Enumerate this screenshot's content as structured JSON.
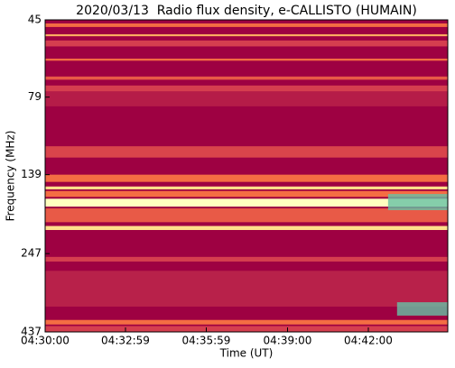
{
  "chart_data": {
    "type": "spectrogram",
    "title": "2020/03/13  Radio flux density, e-CALLISTO (HUMAIN)",
    "xlabel": "Time (UT)",
    "ylabel": "Frequency (MHz)",
    "xlim": [
      16200,
      17097
    ],
    "xticks": [
      {
        "value": 16200,
        "label": "04:30:00"
      },
      {
        "value": 16379,
        "label": "04:32:59"
      },
      {
        "value": 16559,
        "label": "04:35:59"
      },
      {
        "value": 16740,
        "label": "04:39:00"
      },
      {
        "value": 16920,
        "label": "04:42:00"
      }
    ],
    "ylim": [
      437,
      45
    ],
    "ylog": true,
    "yticks": [
      45,
      79,
      139,
      247,
      437
    ],
    "background": "#9e0142",
    "bands": [
      {
        "f": [
          46.2,
          47.4
        ],
        "color": "#f46d43"
      },
      {
        "f": [
          50.0,
          50.7
        ],
        "color": "#fdae61"
      },
      {
        "f": [
          52.3,
          54.6
        ],
        "color": "#d53e4f"
      },
      {
        "f": [
          59.7,
          60.6
        ],
        "color": "#f46d43"
      },
      {
        "f": [
          68.0,
          69.6
        ],
        "color": "#e85a47"
      },
      {
        "f": [
          72.6,
          75.8
        ],
        "color": "#d53e4f"
      },
      {
        "f": [
          75.8,
          84.5
        ],
        "color": "#b51c48"
      },
      {
        "f": [
          113.0,
          122.7
        ],
        "color": "#d9444b"
      },
      {
        "f": [
          139,
          146.5
        ],
        "color": "#f46d43"
      },
      {
        "f": [
          151.5,
          154.7
        ],
        "color": "#fee08b"
      },
      {
        "f": [
          156.5,
          163.4
        ],
        "color": "#f46d43"
      },
      {
        "f": [
          165.6,
          175.4
        ],
        "color": "#ffffbf"
      },
      {
        "f": [
          177.7,
          196.5
        ],
        "color": "#e85a47"
      },
      {
        "f": [
          202,
          208
        ],
        "color": "#fee08b"
      },
      {
        "f": [
          253,
          261.7
        ],
        "color": "#d53e4f"
      },
      {
        "f": [
          280.0,
          363.4
        ],
        "color": "#b8214a"
      },
      {
        "f": [
          400.5,
          414
        ],
        "color": "#f46d43"
      },
      {
        "f": [
          418.7,
          437
        ],
        "color": "#d53e4f"
      }
    ],
    "patches": [
      {
        "t": [
          16964,
          17097
        ],
        "f": [
          160,
          180
        ],
        "color": "#66c2a5"
      },
      {
        "t": [
          16984,
          17097
        ],
        "f": [
          352,
          388
        ],
        "color": "#66c2a5"
      }
    ]
  }
}
